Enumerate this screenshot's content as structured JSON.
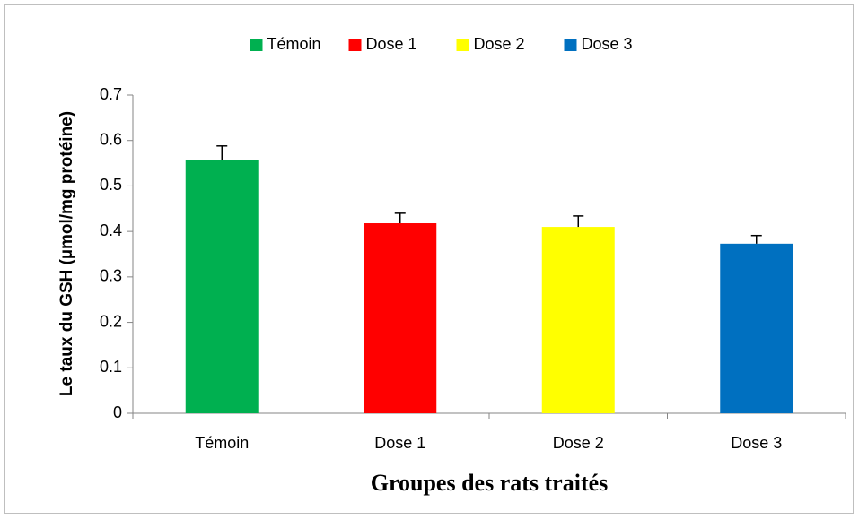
{
  "chart_data": {
    "type": "bar",
    "categories": [
      "Témoin",
      "Dose 1",
      "Dose 2",
      "Dose 3"
    ],
    "values": [
      0.558,
      0.418,
      0.41,
      0.373
    ],
    "errors": [
      0.03,
      0.022,
      0.024,
      0.018
    ],
    "colors": [
      "#00b050",
      "#ff0000",
      "#ffff00",
      "#0070c0"
    ],
    "ylabel": "Le taux du GSH (µmol/mg protéine)",
    "xlabel": "Groupes des rats traités",
    "ylim": [
      0,
      0.7
    ],
    "yticks": [
      0,
      0.1,
      0.2,
      0.3,
      0.4,
      0.5,
      0.6,
      0.7
    ],
    "legend": "top"
  }
}
